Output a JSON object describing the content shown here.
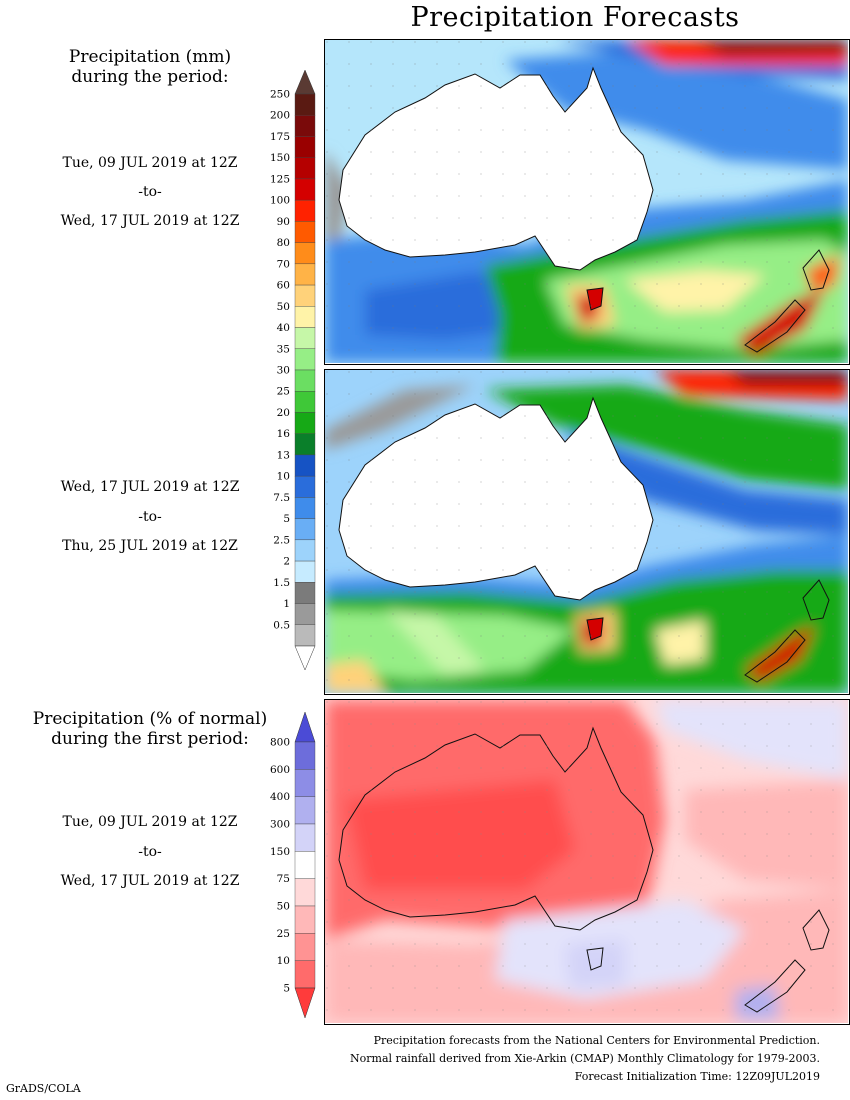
{
  "title": "Precipitation Forecasts",
  "panels": [
    {
      "heading_line1": "Precipitation (mm)",
      "heading_line2": "during the period:",
      "start": "Tue, 09 JUL 2019 at 12Z",
      "sep": "-to-",
      "end": "Wed, 17 JUL 2019 at 12Z"
    },
    {
      "start": "Wed, 17 JUL 2019 at 12Z",
      "sep": "-to-",
      "end": "Thu, 25 JUL 2019 at 12Z"
    },
    {
      "heading_line1": "Precipitation (% of normal)",
      "heading_line2": "during the first period:",
      "start": "Tue, 09 JUL 2019 at 12Z",
      "sep": "-to-",
      "end": "Wed, 17 JUL 2019 at 12Z"
    }
  ],
  "precip_scale": {
    "labels": [
      "250",
      "200",
      "175",
      "150",
      "125",
      "100",
      "90",
      "80",
      "70",
      "60",
      "50",
      "40",
      "35",
      "30",
      "25",
      "20",
      "16",
      "13",
      "10",
      "7.5",
      "5",
      "2.5",
      "2",
      "1.5",
      "1",
      "0.5"
    ],
    "colors": [
      "#5a1a12",
      "#7a0a0a",
      "#9a0000",
      "#b50000",
      "#d40000",
      "#ff2200",
      "#ff5a00",
      "#ff8c1a",
      "#ffb347",
      "#ffd27a",
      "#fff3a8",
      "#c6f7a8",
      "#96ee86",
      "#6bde62",
      "#3fc838",
      "#16a916",
      "#0a7f2a",
      "#1653c4",
      "#2a6ddb",
      "#3f8ceb",
      "#69aef5",
      "#9dd3fb",
      "#c6ebff",
      "#7b7b7b",
      "#9a9a9a",
      "#bababa"
    ],
    "top_cap": "#5a3a33",
    "bottom_cap": "#ffffff"
  },
  "percent_scale": {
    "labels": [
      "800",
      "600",
      "400",
      "300",
      "150",
      "75",
      "50",
      "25",
      "10",
      "5"
    ],
    "colors": [
      "#6d6ddb",
      "#8d8de6",
      "#b0b0ef",
      "#d3d3f8",
      "#ffffff",
      "#ffd9d9",
      "#ffb8b8",
      "#ff9393",
      "#ff6b6b"
    ],
    "top_cap": "#4b4bd6",
    "bottom_cap": "#ff3b3b"
  },
  "footer": {
    "line1": "Precipitation forecasts from the National Centers for Environmental Prediction.",
    "line2": "Normal rainfall derived from Xie-Arkin (CMAP) Monthly Climatology for 1979-2003.",
    "line3": "Forecast Initialization Time: 12Z09JUL2019"
  },
  "credit": "GrADS/COLA"
}
